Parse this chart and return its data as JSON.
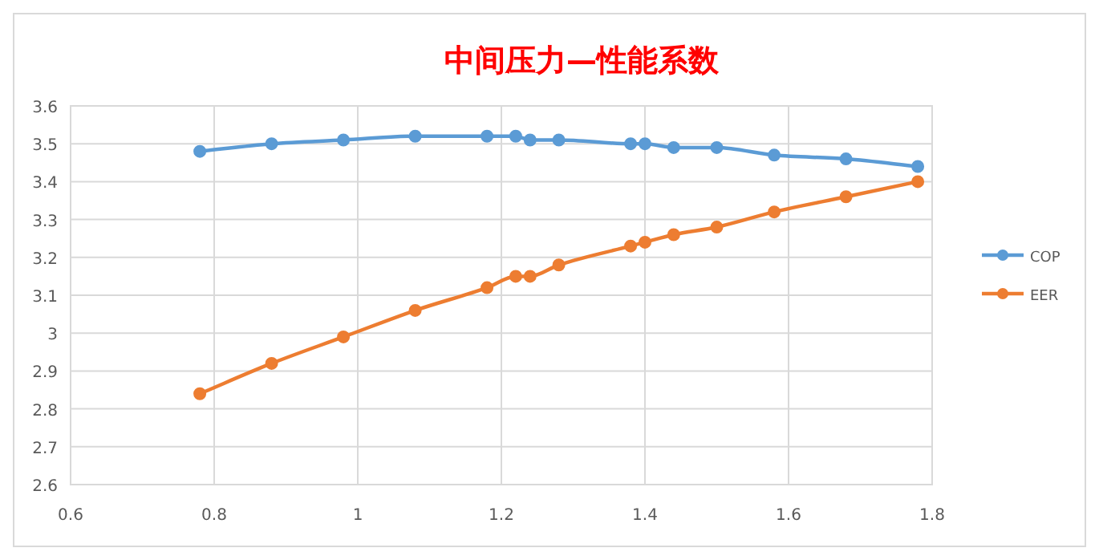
{
  "chart_data": {
    "type": "line",
    "title": "中间压力—性能系数",
    "x": [
      0.78,
      0.88,
      0.98,
      1.08,
      1.18,
      1.22,
      1.24,
      1.28,
      1.38,
      1.4,
      1.44,
      1.5,
      1.58,
      1.68,
      1.78
    ],
    "series": [
      {
        "name": "COP",
        "color": "#5b9bd5",
        "values": [
          3.48,
          3.5,
          3.51,
          3.52,
          3.52,
          3.52,
          3.51,
          3.51,
          3.5,
          3.5,
          3.49,
          3.49,
          3.47,
          3.46,
          3.44
        ]
      },
      {
        "name": "EER",
        "color": "#ed7d31",
        "values": [
          2.84,
          2.92,
          2.99,
          3.06,
          3.12,
          3.15,
          3.15,
          3.18,
          3.23,
          3.24,
          3.26,
          3.28,
          3.32,
          3.36,
          3.4
        ]
      }
    ],
    "xlim": [
      0.6,
      1.8
    ],
    "xticks": [
      0.6,
      0.8,
      1,
      1.2,
      1.4,
      1.6,
      1.8
    ],
    "ylim": [
      2.6,
      3.6
    ],
    "yticks": [
      2.6,
      2.7,
      2.8,
      2.9,
      3,
      3.1,
      3.2,
      3.3,
      3.4,
      3.5,
      3.6
    ],
    "grid": true,
    "legend": "right",
    "marker": "circle",
    "line_style": "solid"
  }
}
